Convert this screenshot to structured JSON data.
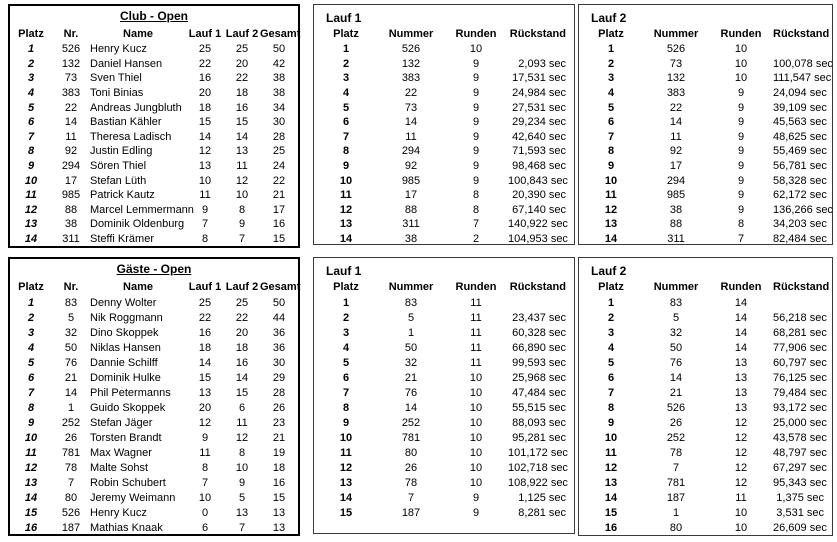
{
  "colors": {
    "text": "#000000",
    "background": "#ffffff",
    "thick_border": "#000000",
    "thin_border": "#3a3a3a"
  },
  "tables": {
    "club_standings": {
      "title": "Club - Open",
      "columns": [
        "Platz",
        "Nr.",
        "Name",
        "Lauf 1",
        "Lauf 2",
        "Gesamt"
      ],
      "rows": [
        [
          "1",
          "526",
          "Henry Kucz",
          "25",
          "25",
          "50"
        ],
        [
          "2",
          "132",
          "Daniel Hansen",
          "22",
          "20",
          "42"
        ],
        [
          "3",
          "73",
          "Sven Thiel",
          "16",
          "22",
          "38"
        ],
        [
          "4",
          "383",
          "Toni Binias",
          "20",
          "18",
          "38"
        ],
        [
          "5",
          "22",
          "Andreas Jungbluth",
          "18",
          "16",
          "34"
        ],
        [
          "6",
          "14",
          "Bastian Kähler",
          "15",
          "15",
          "30"
        ],
        [
          "7",
          "11",
          "Theresa Ladisch",
          "14",
          "14",
          "28"
        ],
        [
          "8",
          "92",
          "Justin Edling",
          "12",
          "13",
          "25"
        ],
        [
          "9",
          "294",
          "Sören Thiel",
          "13",
          "11",
          "24"
        ],
        [
          "10",
          "17",
          "Stefan Lüth",
          "10",
          "12",
          "22"
        ],
        [
          "11",
          "985",
          "Patrick Kautz",
          "11",
          "10",
          "21"
        ],
        [
          "12",
          "88",
          "Marcel Lemmermann",
          "9",
          "8",
          "17"
        ],
        [
          "13",
          "38",
          "Dominik Oldenburg",
          "7",
          "9",
          "16"
        ],
        [
          "14",
          "311",
          "Steffi Krämer",
          "8",
          "7",
          "15"
        ]
      ]
    },
    "club_lauf1": {
      "title": "Lauf 1",
      "columns": [
        "Platz",
        "Nummer",
        "Runden",
        "Rückstand"
      ],
      "rows": [
        [
          "1",
          "526",
          "10",
          ""
        ],
        [
          "2",
          "132",
          "9",
          "2,093 sec"
        ],
        [
          "3",
          "383",
          "9",
          "17,531 sec"
        ],
        [
          "4",
          "22",
          "9",
          "24,984 sec"
        ],
        [
          "5",
          "73",
          "9",
          "27,531 sec"
        ],
        [
          "6",
          "14",
          "9",
          "29,234 sec"
        ],
        [
          "7",
          "11",
          "9",
          "42,640 sec"
        ],
        [
          "8",
          "294",
          "9",
          "71,593 sec"
        ],
        [
          "9",
          "92",
          "9",
          "98,468 sec"
        ],
        [
          "10",
          "985",
          "9",
          "100,843 sec"
        ],
        [
          "11",
          "17",
          "8",
          "20,390 sec"
        ],
        [
          "12",
          "88",
          "8",
          "67,140 sec"
        ],
        [
          "13",
          "311",
          "7",
          "140,922 sec"
        ],
        [
          "14",
          "38",
          "2",
          "104,953 sec"
        ]
      ]
    },
    "club_lauf2": {
      "title": "Lauf 2",
      "columns": [
        "Platz",
        "Nummer",
        "Runden",
        "Rückstand"
      ],
      "rows": [
        [
          "1",
          "526",
          "10",
          ""
        ],
        [
          "2",
          "73",
          "10",
          "100,078 sec"
        ],
        [
          "3",
          "132",
          "10",
          "111,547 sec"
        ],
        [
          "4",
          "383",
          "9",
          "24,094 sec"
        ],
        [
          "5",
          "22",
          "9",
          "39,109 sec"
        ],
        [
          "6",
          "14",
          "9",
          "45,563 sec"
        ],
        [
          "7",
          "11",
          "9",
          "48,625 sec"
        ],
        [
          "8",
          "92",
          "9",
          "55,469 sec"
        ],
        [
          "9",
          "17",
          "9",
          "56,781 sec"
        ],
        [
          "10",
          "294",
          "9",
          "58,328 sec"
        ],
        [
          "11",
          "985",
          "9",
          "62,172 sec"
        ],
        [
          "12",
          "38",
          "9",
          "136,266 sec"
        ],
        [
          "13",
          "88",
          "8",
          "34,203 sec"
        ],
        [
          "14",
          "311",
          "7",
          "82,484 sec"
        ]
      ]
    },
    "gaeste_standings": {
      "title": "Gäste - Open",
      "columns": [
        "Platz",
        "Nr.",
        "Name",
        "Lauf 1",
        "Lauf 2",
        "Gesamt"
      ],
      "rows": [
        [
          "1",
          "83",
          "Denny Wolter",
          "25",
          "25",
          "50"
        ],
        [
          "2",
          "5",
          "Nik Roggmann",
          "22",
          "22",
          "44"
        ],
        [
          "3",
          "32",
          "Dino Skoppek",
          "16",
          "20",
          "36"
        ],
        [
          "4",
          "50",
          "Niklas Hansen",
          "18",
          "18",
          "36"
        ],
        [
          "5",
          "76",
          "Dannie Schilff",
          "14",
          "16",
          "30"
        ],
        [
          "6",
          "21",
          "Dominik Hulke",
          "15",
          "14",
          "29"
        ],
        [
          "7",
          "14",
          "Phil Petermanns",
          "13",
          "15",
          "28"
        ],
        [
          "8",
          "1",
          "Guido Skoppek",
          "20",
          "6",
          "26"
        ],
        [
          "9",
          "252",
          "Stefan Jäger",
          "12",
          "11",
          "23"
        ],
        [
          "10",
          "26",
          "Torsten Brandt",
          "9",
          "12",
          "21"
        ],
        [
          "11",
          "781",
          "Max Wagner",
          "11",
          "8",
          "19"
        ],
        [
          "12",
          "78",
          "Malte Sohst",
          "8",
          "10",
          "18"
        ],
        [
          "13",
          "7",
          "Robin Schubert",
          "7",
          "9",
          "16"
        ],
        [
          "14",
          "80",
          "Jeremy Weimann",
          "10",
          "5",
          "15"
        ],
        [
          "15",
          "526",
          "Henry Kucz",
          "0",
          "13",
          "13"
        ],
        [
          "16",
          "187",
          "Mathias Knaak",
          "6",
          "7",
          "13"
        ]
      ]
    },
    "gaeste_lauf1": {
      "title": "Lauf 1",
      "columns": [
        "Platz",
        "Nummer",
        "Runden",
        "Rückstand"
      ],
      "rows": [
        [
          "1",
          "83",
          "11",
          ""
        ],
        [
          "2",
          "5",
          "11",
          "23,437 sec"
        ],
        [
          "3",
          "1",
          "11",
          "60,328 sec"
        ],
        [
          "4",
          "50",
          "11",
          "66,890 sec"
        ],
        [
          "5",
          "32",
          "11",
          "99,593 sec"
        ],
        [
          "6",
          "21",
          "10",
          "25,968 sec"
        ],
        [
          "7",
          "76",
          "10",
          "47,484 sec"
        ],
        [
          "8",
          "14",
          "10",
          "55,515 sec"
        ],
        [
          "9",
          "252",
          "10",
          "88,093 sec"
        ],
        [
          "10",
          "781",
          "10",
          "95,281 sec"
        ],
        [
          "11",
          "80",
          "10",
          "101,172 sec"
        ],
        [
          "12",
          "26",
          "10",
          "102,718 sec"
        ],
        [
          "13",
          "78",
          "10",
          "108,922 sec"
        ],
        [
          "14",
          "7",
          "9",
          "1,125 sec"
        ],
        [
          "15",
          "187",
          "9",
          "8,281 sec"
        ]
      ]
    },
    "gaeste_lauf2": {
      "title": "Lauf 2",
      "columns": [
        "Platz",
        "Nummer",
        "Runden",
        "Rückstand"
      ],
      "rows": [
        [
          "1",
          "83",
          "14",
          ""
        ],
        [
          "2",
          "5",
          "14",
          "56,218 sec"
        ],
        [
          "3",
          "32",
          "14",
          "68,281 sec"
        ],
        [
          "4",
          "50",
          "14",
          "77,906 sec"
        ],
        [
          "5",
          "76",
          "13",
          "60,797 sec"
        ],
        [
          "6",
          "14",
          "13",
          "76,125 sec"
        ],
        [
          "7",
          "21",
          "13",
          "79,484 sec"
        ],
        [
          "8",
          "526",
          "13",
          "93,172 sec"
        ],
        [
          "9",
          "26",
          "12",
          "25,000 sec"
        ],
        [
          "10",
          "252",
          "12",
          "43,578 sec"
        ],
        [
          "11",
          "78",
          "12",
          "48,797 sec"
        ],
        [
          "12",
          "7",
          "12",
          "67,297 sec"
        ],
        [
          "13",
          "781",
          "12",
          "95,343 sec"
        ],
        [
          "14",
          "187",
          "11",
          "1,375 sec"
        ],
        [
          "15",
          "1",
          "10",
          "3,531 sec"
        ],
        [
          "16",
          "80",
          "10",
          "26,609 sec"
        ]
      ]
    }
  }
}
